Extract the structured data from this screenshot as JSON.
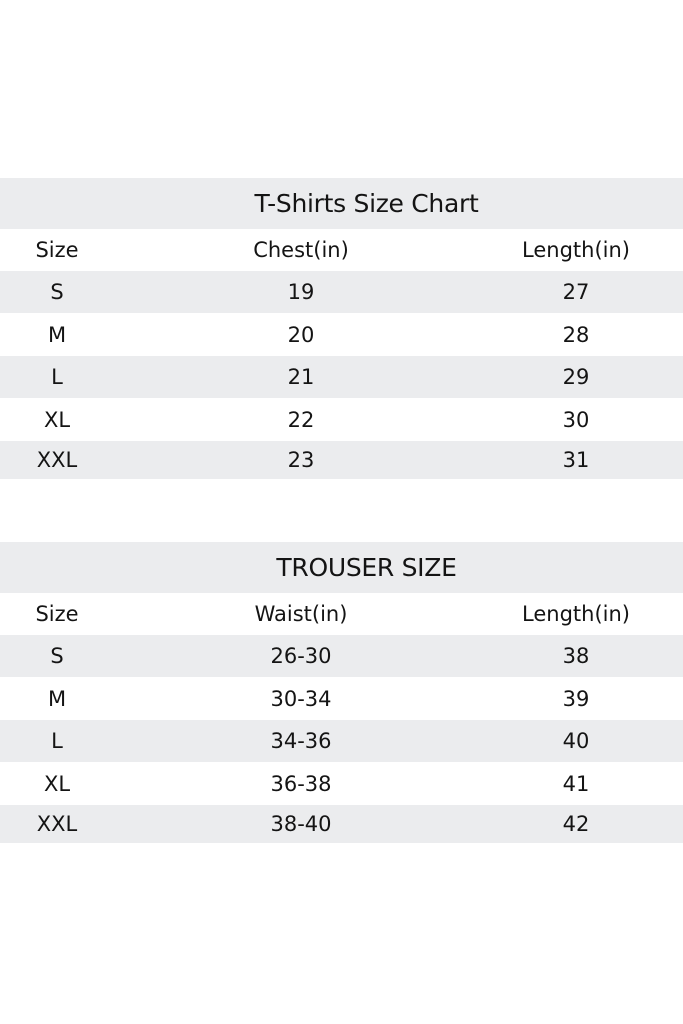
{
  "tables": [
    {
      "title": "T-Shirts Size Chart",
      "headers": [
        "Size",
        "Chest(in)",
        "Length(in)"
      ],
      "rows": [
        [
          "S",
          "19",
          "27"
        ],
        [
          "M",
          "20",
          "28"
        ],
        [
          "L",
          "21",
          "29"
        ],
        [
          "XL",
          "22",
          "30"
        ],
        [
          "XXL",
          "23",
          "31"
        ]
      ]
    },
    {
      "title": "TROUSER SIZE",
      "headers": [
        "Size",
        "Waist(in)",
        "Length(in)"
      ],
      "rows": [
        [
          "S",
          "26-30",
          "38"
        ],
        [
          "M",
          "30-34",
          "39"
        ],
        [
          "L",
          "34-36",
          "40"
        ],
        [
          "XL",
          "36-38",
          "41"
        ],
        [
          "XXL",
          "38-40",
          "42"
        ]
      ]
    }
  ],
  "colors": {
    "band": "#ebecee",
    "text": "#141414"
  }
}
